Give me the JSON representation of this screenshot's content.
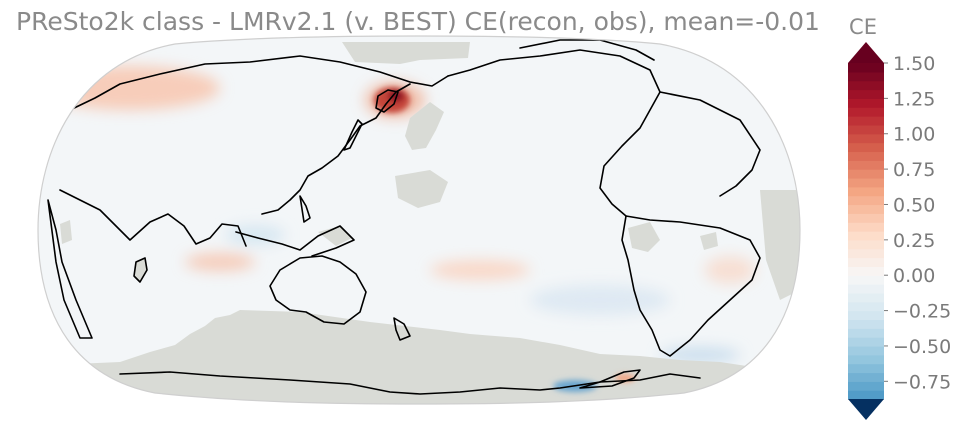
{
  "title": "PReSto2k class - LMRv2.1 (v. BEST) CE(recon, obs), mean=-0.01",
  "colorbar": {
    "label": "CE",
    "ticks": [
      "1.50",
      "1.25",
      "1.00",
      "0.75",
      "0.50",
      "0.25",
      "0.00",
      "−0.25",
      "−0.50",
      "−0.75"
    ],
    "tick_values": [
      1.5,
      1.25,
      1.0,
      0.75,
      0.5,
      0.25,
      0.0,
      -0.25,
      -0.5,
      -0.75
    ],
    "vmin": -0.875,
    "vmax": 1.5,
    "extend": "both",
    "colormap": "RdBu_r"
  },
  "map": {
    "projection": "Robinson",
    "central_longitude": 180,
    "field": "CE",
    "missing_color": "#d9dbd6",
    "positive_color": "#b2182b",
    "negative_color": "#2166ac",
    "neutral_color": "#f7f7f7"
  }
}
